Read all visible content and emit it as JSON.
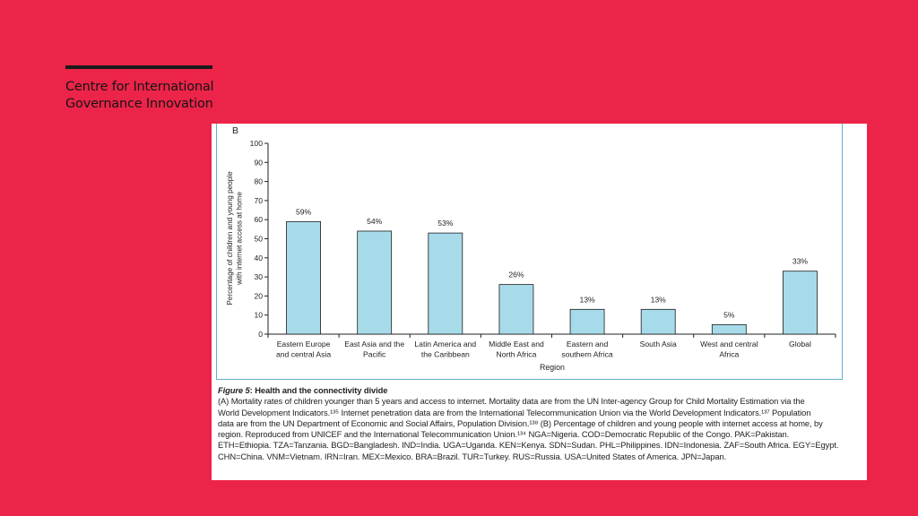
{
  "logo": {
    "line1": "Centre for International",
    "line2": "Governance Innovation"
  },
  "chart_data": {
    "type": "bar",
    "panel_label": "B",
    "categories": [
      [
        "Eastern Europe",
        "and central Asia"
      ],
      [
        "East Asia and the",
        "Pacific"
      ],
      [
        "Latin America and",
        "the Caribbean"
      ],
      [
        "Middle East and",
        "North Africa"
      ],
      [
        "Eastern and",
        "southern Africa"
      ],
      [
        "South Asia"
      ],
      [
        "West and central",
        "Africa"
      ],
      [
        "Global"
      ]
    ],
    "values": [
      59,
      54,
      53,
      26,
      13,
      13,
      5,
      33
    ],
    "data_labels": [
      "59%",
      "54%",
      "53%",
      "26%",
      "13%",
      "13%",
      "5%",
      "33%"
    ],
    "xlabel": "Region",
    "ylabel": [
      "Percentage of children and young people",
      "with internet access at home"
    ],
    "ylim": [
      0,
      100
    ],
    "yticks": [
      0,
      10,
      20,
      30,
      40,
      50,
      60,
      70,
      80,
      90,
      100
    ],
    "bar_color": "#a7dbea",
    "bar_stroke": "#1a1a1a",
    "grid": false
  },
  "caption": {
    "figure_label": "Figure 5",
    "title": ": Health and the connectivity divide",
    "lines": [
      "(A) Mortality rates of children younger than 5 years and access to internet. Mortality data are from the UN Inter-agency Group for Child Mortality Estimation via the",
      "World Development Indicators.¹³⁵ Internet penetration data are from the International Telecommunication Union via the World Development Indicators.¹³⁷ Population",
      "data are from the UN Department of Economic and Social Affairs, Population Division.¹³⁸ (B) Percentage of children and young people with internet access at home, by",
      "region. Reproduced from UNICEF and the International Telecommunication Union.¹³⁴ NGA=Nigeria. COD=Democratic Republic of the Congo. PAK=Pakistan.",
      "ETH=Ethiopia. TZA=Tanzania. BGD=Bangladesh. IND=India. UGA=Uganda. KEN=Kenya. SDN=Sudan. PHL=Philippines. IDN=Indonesia. ZAF=South Africa. EGY=Egypt.",
      "CHN=China. VNM=Vietnam. IRN=Iran. MEX=Mexico. BRA=Brazil. TUR=Turkey. RUS=Russia. USA=United States of America. JPN=Japan."
    ]
  }
}
